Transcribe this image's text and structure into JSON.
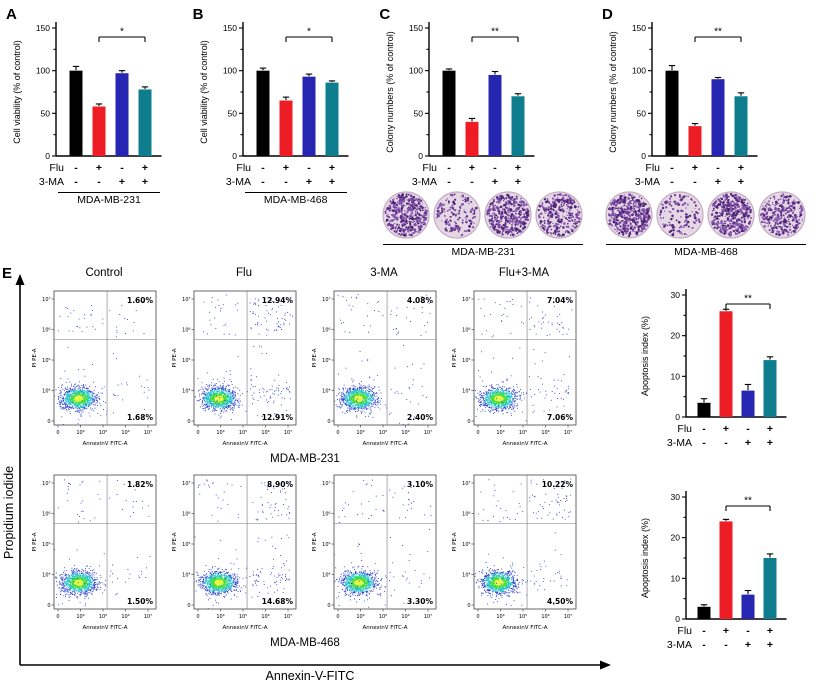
{
  "labels": {
    "panel_a": "A",
    "panel_b": "B",
    "panel_c": "C",
    "panel_d": "D",
    "panel_e": "E",
    "flu": "Flu",
    "ma": "3-MA",
    "flow_xlabel": "Annexin-V-FITC",
    "flow_ylabel": "Propidium iodide"
  },
  "colors": {
    "bars": [
      "#000000",
      "#ee1c25",
      "#2726b3",
      "#0e7e8e"
    ],
    "colony_dots": [
      "#5b2d86",
      "#7a4ba5",
      "#8d5eb4",
      "#47226f"
    ],
    "dish_fill": "#e6d7e4",
    "dish_rim": "#c4abc1",
    "flow_core": [
      "#e8f43c",
      "#3fdd3f",
      "#21c3ca",
      "#2438cc"
    ],
    "flow_debris": "#2438cc"
  },
  "chart_data": {
    "viability_231": {
      "type": "bar",
      "ylabel": "Cell viability (% of control)",
      "ylim": [
        0,
        150
      ],
      "yticks": [
        0,
        50,
        100,
        150
      ],
      "categories": [
        "Control",
        "Flu",
        "3-MA",
        "Flu+3-MA"
      ],
      "values": [
        100,
        58,
        97,
        78
      ],
      "errors": [
        5,
        3,
        3,
        3
      ],
      "sig": {
        "label": "*",
        "from": 1,
        "to": 3
      },
      "flu": [
        "-",
        "+",
        "-",
        "+"
      ],
      "ma": [
        "-",
        "-",
        "+",
        "+"
      ],
      "cell_line": "MDA-MB-231"
    },
    "viability_468": {
      "type": "bar",
      "ylabel": "Cell viability (% of control)",
      "ylim": [
        0,
        150
      ],
      "yticks": [
        0,
        50,
        100,
        150
      ],
      "categories": [
        "Control",
        "Flu",
        "3-MA",
        "Flu+3-MA"
      ],
      "values": [
        100,
        65,
        93,
        86
      ],
      "errors": [
        3,
        4,
        3,
        2
      ],
      "sig": {
        "label": "*",
        "from": 1,
        "to": 3
      },
      "flu": [
        "-",
        "+",
        "-",
        "+"
      ],
      "ma": [
        "-",
        "-",
        "+",
        "+"
      ],
      "cell_line": "MDA-MB-468"
    },
    "colony_231": {
      "type": "bar",
      "ylabel": "Colony numbers (% of control)",
      "ylim": [
        0,
        150
      ],
      "yticks": [
        0,
        50,
        100,
        150
      ],
      "categories": [
        "Control",
        "Flu",
        "3-MA",
        "Flu+3-MA"
      ],
      "values": [
        100,
        40,
        95,
        70
      ],
      "errors": [
        2,
        4,
        4,
        3
      ],
      "sig": {
        "label": "**",
        "from": 1,
        "to": 3
      },
      "flu": [
        "-",
        "+",
        "-",
        "+"
      ],
      "ma": [
        "-",
        "-",
        "+",
        "+"
      ],
      "colony_density": [
        420,
        150,
        400,
        290
      ],
      "cell_line": "MDA-MB-231"
    },
    "colony_468": {
      "type": "bar",
      "ylabel": "Colony numbers (% of control)",
      "ylim": [
        0,
        150
      ],
      "yticks": [
        0,
        50,
        100,
        150
      ],
      "categories": [
        "Control",
        "Flu",
        "3-MA",
        "Flu+3-MA"
      ],
      "values": [
        100,
        35,
        90,
        70
      ],
      "errors": [
        6,
        3,
        2,
        4
      ],
      "sig": {
        "label": "**",
        "from": 1,
        "to": 3
      },
      "flu": [
        "-",
        "+",
        "-",
        "+"
      ],
      "ma": [
        "-",
        "-",
        "+",
        "+"
      ],
      "colony_density": [
        430,
        130,
        380,
        280
      ],
      "cell_line": "MDA-MB-468"
    },
    "apoptosis_231": {
      "type": "bar",
      "ylabel": "Apoptosis index (%)",
      "ylim": [
        0,
        30
      ],
      "yticks": [
        0,
        10,
        20,
        30
      ],
      "categories": [
        "Control",
        "Flu",
        "3-MA",
        "Flu+3-MA"
      ],
      "values": [
        3.5,
        26,
        6.5,
        14
      ],
      "errors": [
        1,
        0.5,
        1.5,
        0.8
      ],
      "sig": {
        "label": "**",
        "from": 1,
        "to": 3
      },
      "flu": [
        "-",
        "+",
        "-",
        "+"
      ],
      "ma": [
        "-",
        "-",
        "+",
        "+"
      ]
    },
    "apoptosis_468": {
      "type": "bar",
      "ylabel": "Apoptosis index (%)",
      "ylim": [
        0,
        30
      ],
      "yticks": [
        0,
        10,
        20,
        30
      ],
      "categories": [
        "Control",
        "Flu",
        "3-MA",
        "Flu+3-MA"
      ],
      "values": [
        3,
        24,
        6,
        15
      ],
      "errors": [
        0.5,
        0.5,
        1,
        1
      ],
      "sig": {
        "label": "**",
        "from": 1,
        "to": 3
      },
      "flu": [
        "-",
        "+",
        "-",
        "+"
      ],
      "ma": [
        "-",
        "-",
        "+",
        "+"
      ]
    },
    "flow": {
      "type": "scatter",
      "xlabel": "AnnexinV FITC-A",
      "ylabel": "PI PE-A",
      "xticks": [
        "0",
        "10⁴",
        "10⁵",
        "10⁶",
        "10⁷"
      ],
      "yticks": [
        "0",
        "10⁴",
        "10⁵",
        "10⁶",
        "10⁷"
      ],
      "rows": [
        {
          "cell_line": "MDA-MB-231",
          "plots": [
            {
              "title": "Control",
              "upper_right": "1.60%",
              "lower_right": "1.68%"
            },
            {
              "title": "Flu",
              "upper_right": "12.94%",
              "lower_right": "12.91%"
            },
            {
              "title": "3-MA",
              "upper_right": "4.08%",
              "lower_right": "2.40%"
            },
            {
              "title": "Flu+3-MA",
              "upper_right": "7.04%",
              "lower_right": "7.06%"
            }
          ]
        },
        {
          "cell_line": "MDA-MB-468",
          "plots": [
            {
              "title": "Control",
              "upper_right": "1.82%",
              "lower_right": "1.50%"
            },
            {
              "title": "Flu",
              "upper_right": "8.90%",
              "lower_right": "14.68%"
            },
            {
              "title": "3-MA",
              "upper_right": "3.10%",
              "lower_right": "3.30%"
            },
            {
              "title": "Flu+3-MA",
              "upper_right": "10.22%",
              "lower_right": "4.50%"
            }
          ]
        }
      ]
    }
  }
}
